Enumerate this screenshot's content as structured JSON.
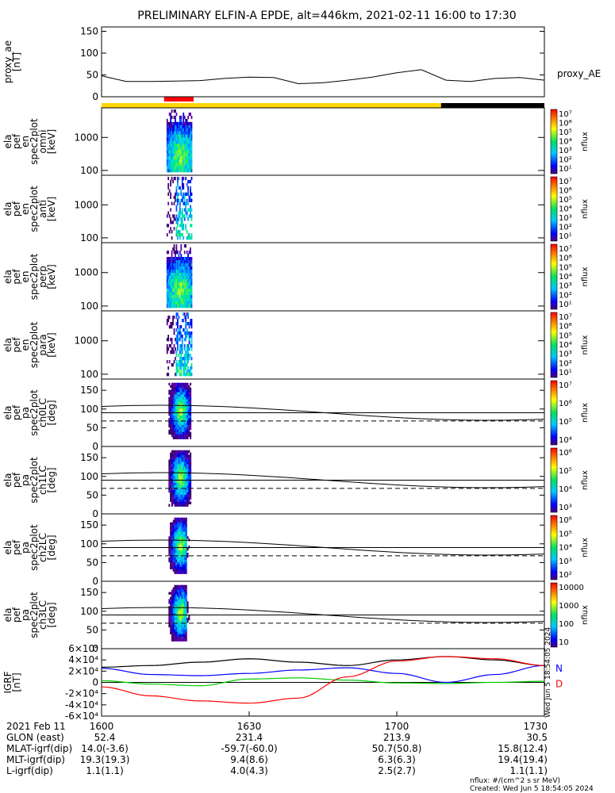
{
  "title": "PRELIMINARY ELFIN-A EPDE, alt=446km, 2021-02-11 16:00 to 17:30",
  "colors": {
    "bar_yellow": "#ffd700",
    "bar_red": "#ff0000",
    "bar_black": "#000000",
    "igrf_black": "#000000",
    "igrf_blue": "#0000ff",
    "igrf_green": "#00cc00",
    "igrf_red": "#ff0000"
  },
  "chart_data": [
    {
      "type": "line",
      "panel": "proxy_ae",
      "ylabel_lines": [
        "proxy_ae",
        "[nT]"
      ],
      "legend": "proxy_AE",
      "yticks": [
        "0",
        "50",
        "100",
        "150"
      ],
      "ylim": [
        0,
        160
      ],
      "x_minutes": [
        0,
        5,
        10,
        15,
        20,
        25,
        30,
        35,
        40,
        45,
        50,
        55,
        60,
        65,
        70,
        75,
        80,
        85,
        90
      ],
      "values": [
        48,
        35,
        35,
        36,
        37,
        42,
        45,
        44,
        30,
        32,
        38,
        45,
        55,
        62,
        38,
        35,
        42,
        44,
        38
      ]
    },
    {
      "type": "heatmap",
      "panel": "en_spec2plot_omni",
      "ylabel_lines": [
        "ela",
        "pef",
        "en",
        "spec2plot",
        "omni",
        "[keV]"
      ],
      "yticks": [
        "100",
        "1000"
      ],
      "ylog": true,
      "colorbar_label": "nflux",
      "colorbar_ticks": [
        "10⁷",
        "10⁶",
        "10⁵",
        "10⁴",
        "10³",
        "10²",
        "10¹"
      ]
    },
    {
      "type": "heatmap",
      "panel": "en_spec2plot_anti",
      "ylabel_lines": [
        "ela",
        "pef",
        "en",
        "spec2plot",
        "anti",
        "[keV]"
      ],
      "yticks": [
        "100",
        "1000"
      ],
      "ylog": true,
      "colorbar_label": "nflux",
      "colorbar_ticks": [
        "10⁷",
        "10⁶",
        "10⁵",
        "10⁴",
        "10³",
        "10²",
        "10¹"
      ]
    },
    {
      "type": "heatmap",
      "panel": "en_spec2plot_perp",
      "ylabel_lines": [
        "ela",
        "pef",
        "en",
        "spec2plot",
        "perp",
        "[keV]"
      ],
      "yticks": [
        "100",
        "1000"
      ],
      "ylog": true,
      "colorbar_label": "nflux",
      "colorbar_ticks": [
        "10⁷",
        "10⁶",
        "10⁵",
        "10⁴",
        "10³",
        "10²",
        "10¹"
      ]
    },
    {
      "type": "heatmap",
      "panel": "en_spec2plot_para",
      "ylabel_lines": [
        "ela",
        "pef",
        "en",
        "spec2plot",
        "para",
        "[keV]"
      ],
      "yticks": [
        "100",
        "1000"
      ],
      "ylog": true,
      "colorbar_label": "nflux",
      "colorbar_ticks": [
        "10⁷",
        "10⁶",
        "10⁵",
        "10⁴",
        "10³",
        "10²",
        "10¹"
      ]
    },
    {
      "type": "heatmap",
      "panel": "pa_spec2plot_ch0LC",
      "ylabel_lines": [
        "ela",
        "pef",
        "pa",
        "spec2plot",
        "ch0LC",
        "[deg]"
      ],
      "yticks": [
        "0",
        "50",
        "100",
        "150"
      ],
      "ylim": [
        0,
        180
      ],
      "colorbar_label": "nflux",
      "colorbar_ticks": [
        "10⁷",
        "10⁶",
        "10⁵",
        "10⁴"
      ]
    },
    {
      "type": "heatmap",
      "panel": "pa_spec2plot_ch1LC",
      "ylabel_lines": [
        "ela",
        "pef",
        "pa",
        "spec2plot",
        "ch1LC",
        "[deg]"
      ],
      "yticks": [
        "0",
        "50",
        "100",
        "150"
      ],
      "ylim": [
        0,
        180
      ],
      "colorbar_label": "nflux",
      "colorbar_ticks": [
        "10⁶",
        "10⁵",
        "10⁴",
        "10³"
      ]
    },
    {
      "type": "heatmap",
      "panel": "pa_spec2plot_ch2LC",
      "ylabel_lines": [
        "ela",
        "pef",
        "pa",
        "spec2plot",
        "ch2LC",
        "[deg]"
      ],
      "yticks": [
        "0",
        "50",
        "100",
        "150"
      ],
      "ylim": [
        0,
        180
      ],
      "colorbar_label": "nflux",
      "colorbar_ticks": [
        "10⁶",
        "10⁵",
        "10⁴",
        "10³",
        "10²"
      ]
    },
    {
      "type": "heatmap",
      "panel": "pa_spec2plot_ch3LC",
      "ylabel_lines": [
        "ela",
        "pef",
        "pa",
        "spec2plot",
        "ch3LC",
        "[deg]"
      ],
      "yticks": [
        "0",
        "50",
        "100",
        "150"
      ],
      "ylim": [
        0,
        180
      ],
      "colorbar_label": "nflux",
      "colorbar_ticks": [
        "10000",
        "1000",
        "100",
        "10"
      ]
    },
    {
      "type": "line",
      "panel": "igrf",
      "ylabel_lines": [
        "IGRF",
        "[nT]"
      ],
      "yticks": [
        "-6×10⁴",
        "-4×10⁴",
        "-2×10⁴",
        "0",
        "2×10⁴",
        "4×10⁴",
        "6×10⁴"
      ],
      "ylim": [
        -60000,
        60000
      ],
      "legend": [
        "N",
        "D"
      ],
      "x_minutes": [
        0,
        10,
        20,
        30,
        40,
        50,
        60,
        70,
        80,
        90
      ],
      "series": [
        {
          "color": "#000000",
          "values": [
            27000,
            30000,
            36000,
            42000,
            36000,
            30000,
            40000,
            46000,
            40000,
            30000
          ]
        },
        {
          "color": "#0000ff",
          "values": [
            25000,
            14000,
            12000,
            16000,
            22000,
            26000,
            16000,
            0,
            14000,
            30000
          ]
        },
        {
          "color": "#00cc00",
          "values": [
            3000,
            -3000,
            -6000,
            6000,
            8000,
            4000,
            -1000,
            -2000,
            0,
            2000
          ]
        },
        {
          "color": "#ff0000",
          "values": [
            -8000,
            -24000,
            -33000,
            -37000,
            -28000,
            10000,
            38000,
            46000,
            42000,
            30000
          ]
        }
      ]
    }
  ],
  "xaxis": {
    "rows": [
      {
        "label": "2021 Feb 11",
        "values": [
          "1600",
          "1630",
          "1700",
          "1730"
        ]
      },
      {
        "label": "GLON (east)",
        "values": [
          "52.4",
          "231.4",
          "213.9",
          "30.5"
        ]
      },
      {
        "label": "MLAT-igrf(dip)",
        "values": [
          "14.0(-3.6)",
          "-59.7(-60.0)",
          "50.7(50.8)",
          "15.8(12.4)"
        ]
      },
      {
        "label": "MLT-igrf(dip)",
        "values": [
          "19.3(19.3)",
          "9.4(8.6)",
          "6.3(6.3)",
          "19.4(19.4)"
        ]
      },
      {
        "label": "L-igrf(dip)",
        "values": [
          "1.1(1.1)",
          "4.0(4.3)",
          "2.5(2.7)",
          "1.1(1.1)"
        ]
      }
    ]
  },
  "footer": {
    "units": "nflux: #/(cm^2 s sr MeV)",
    "created": "Created: Wed Jun  5 18:54:05 2024",
    "side_stamp": "Wed Jun  5 18:54:05 2024"
  }
}
